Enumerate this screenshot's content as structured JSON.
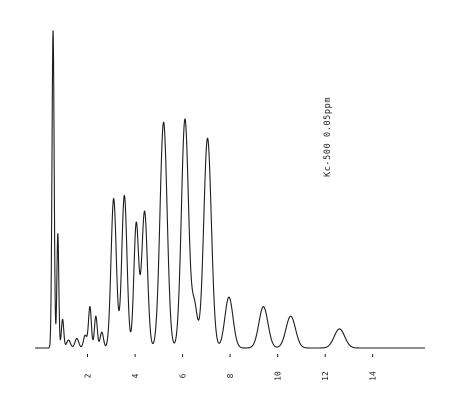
{
  "chart_data": {
    "type": "line",
    "annotation": "Kc-500  0.05ppm",
    "xlabel": "",
    "ylabel": "",
    "xlim": [
      0,
      16.2
    ],
    "ylim": [
      0,
      100
    ],
    "grid": false,
    "tick_labels": [
      "2",
      "4",
      "6",
      "8",
      "10",
      "12",
      "14"
    ],
    "tick_values": [
      2,
      4,
      6,
      8,
      10,
      12,
      14
    ],
    "baseline_start": 0,
    "series": [
      {
        "peaks": [
          {
            "x": 0.55,
            "y": 100,
            "w": 0.045
          },
          {
            "x": 0.75,
            "y": 36,
            "w": 0.04
          },
          {
            "x": 0.95,
            "y": 9,
            "w": 0.05
          },
          {
            "x": 1.2,
            "y": 2.5,
            "w": 0.08
          },
          {
            "x": 1.55,
            "y": 3,
            "w": 0.08
          },
          {
            "x": 1.9,
            "y": 4,
            "w": 0.07
          },
          {
            "x": 2.1,
            "y": 13,
            "w": 0.06
          },
          {
            "x": 2.35,
            "y": 10,
            "w": 0.06
          },
          {
            "x": 2.6,
            "y": 5,
            "w": 0.07
          },
          {
            "x": 3.1,
            "y": 47,
            "w": 0.11
          },
          {
            "x": 3.55,
            "y": 48,
            "w": 0.11
          },
          {
            "x": 4.05,
            "y": 39,
            "w": 0.1
          },
          {
            "x": 4.4,
            "y": 43,
            "w": 0.12
          },
          {
            "x": 5.2,
            "y": 71,
            "w": 0.15
          },
          {
            "x": 6.1,
            "y": 72,
            "w": 0.15
          },
          {
            "x": 6.5,
            "y": 13,
            "w": 0.12
          },
          {
            "x": 7.05,
            "y": 66,
            "w": 0.16
          },
          {
            "x": 7.95,
            "y": 16,
            "w": 0.17
          },
          {
            "x": 9.4,
            "y": 13,
            "w": 0.19
          },
          {
            "x": 10.55,
            "y": 10,
            "w": 0.2
          },
          {
            "x": 12.6,
            "y": 6,
            "w": 0.22
          }
        ]
      }
    ]
  }
}
